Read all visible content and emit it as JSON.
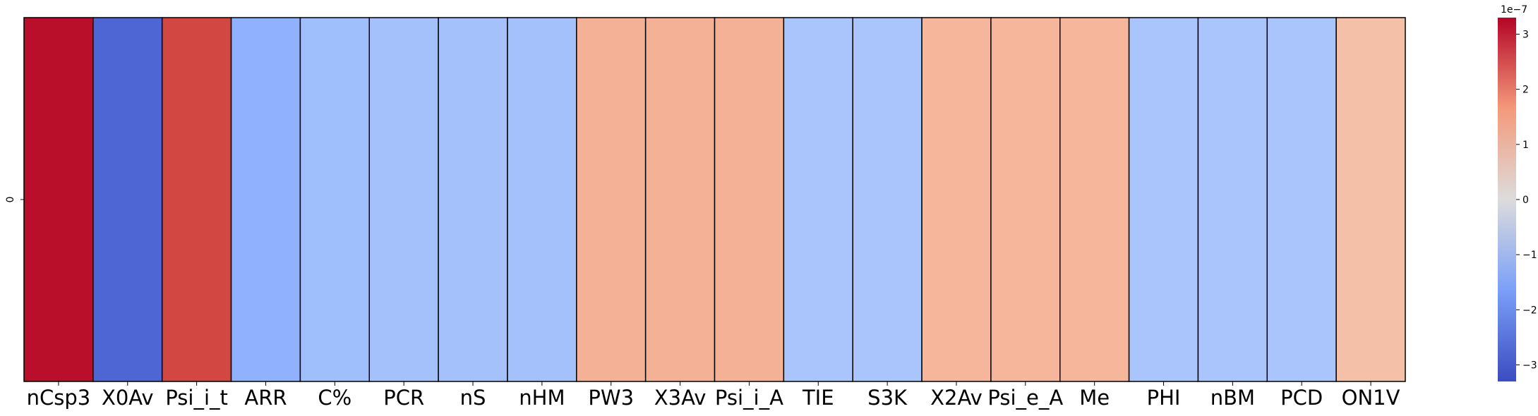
{
  "chart_data": {
    "type": "heatmap",
    "title": "",
    "xlabel": "",
    "ylabel": "",
    "rows": [
      "0"
    ],
    "columns": [
      "nCsp3",
      "X0Av",
      "Psi_i_t",
      "ARR",
      "C%",
      "PCR",
      "nS",
      "nHM",
      "PW3",
      "X3Av",
      "Psi_i_A",
      "TIE",
      "S3K",
      "X2Av",
      "Psi_e_A",
      "Me",
      "PHI",
      "nBM",
      "PCD",
      "ON1V"
    ],
    "values": [
      [
        3.2e-07,
        -2.9e-07,
        2.7e-07,
        -1.6e-07,
        -1.3e-07,
        -1.2e-07,
        -1.2e-07,
        -1.2e-07,
        1.2e-07,
        1.2e-07,
        1.2e-07,
        -1.1e-07,
        -1.1e-07,
        1.1e-07,
        1.1e-07,
        1.1e-07,
        -1.1e-07,
        -1.1e-07,
        -1.1e-07,
        9e-08
      ]
    ],
    "colormap": "coolwarm",
    "vmin": -3.3e-07,
    "vmax": 3.3e-07,
    "colorbar": {
      "ticks": [
        -3,
        -2,
        -1,
        0,
        1,
        2,
        3
      ],
      "tick_labels": [
        "−3",
        "−2",
        "−1",
        "0",
        "1",
        "2",
        "3"
      ],
      "multiplier_label": "1e−7",
      "scale": 1e-07
    },
    "cell_border_color": "#000000",
    "grid": false
  }
}
